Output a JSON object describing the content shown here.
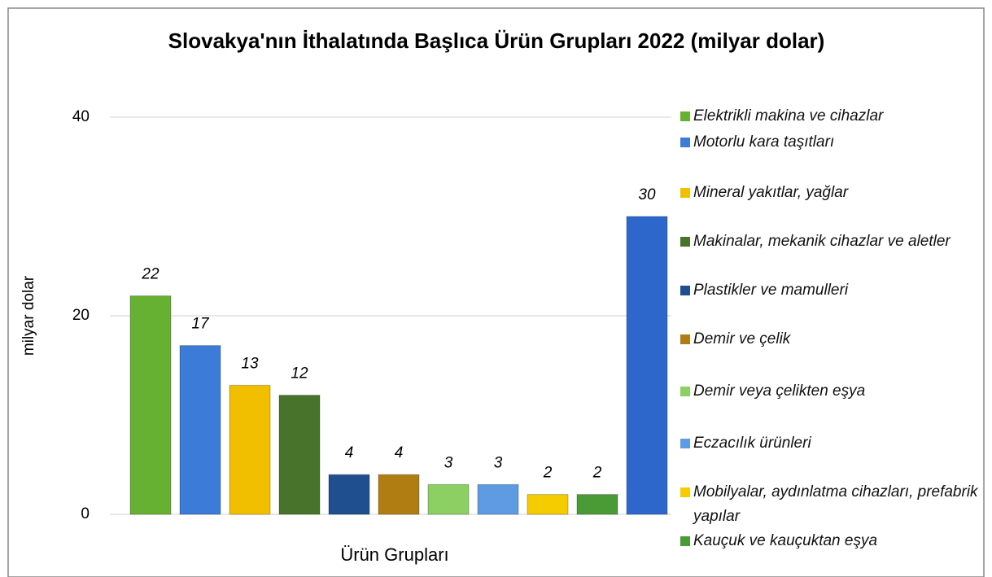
{
  "chart_data": {
    "type": "bar",
    "title": "Slovakya'nın İthalatında Başlıca Ürün Grupları 2022 (milyar dolar)",
    "x_label": "Ürün Grupları",
    "y_label": "milyar dolar",
    "categories": [
      "Elektrikli makina ve cihazlar",
      "Motorlu kara taşıtları",
      "Mineral yakıtlar, yağlar",
      "Makinalar, mekanik cihazlar ve aletler",
      "Plastikler ve mamulleri",
      "Demir ve çelik",
      "Demir veya çelikten eşya",
      "Eczacılık ürünleri",
      "Mobilyalar, aydınlatma cihazları, prefabrik yapılar",
      "Kauçuk ve kauçuktan eşya",
      null
    ],
    "values": [
      22,
      17,
      13,
      12,
      4,
      4,
      3,
      3,
      2,
      2,
      30
    ],
    "colors": [
      "#66b032",
      "#3d7bd9",
      "#f2be00",
      "#47742a",
      "#1f4f8f",
      "#b07d12",
      "#8ccf62",
      "#5e9be2",
      "#f5cc00",
      "#4a9a36",
      "#2e67cc"
    ],
    "ylim": [
      0,
      40
    ],
    "yticks": [
      0,
      20,
      40
    ],
    "grid": true,
    "legend": "right"
  }
}
